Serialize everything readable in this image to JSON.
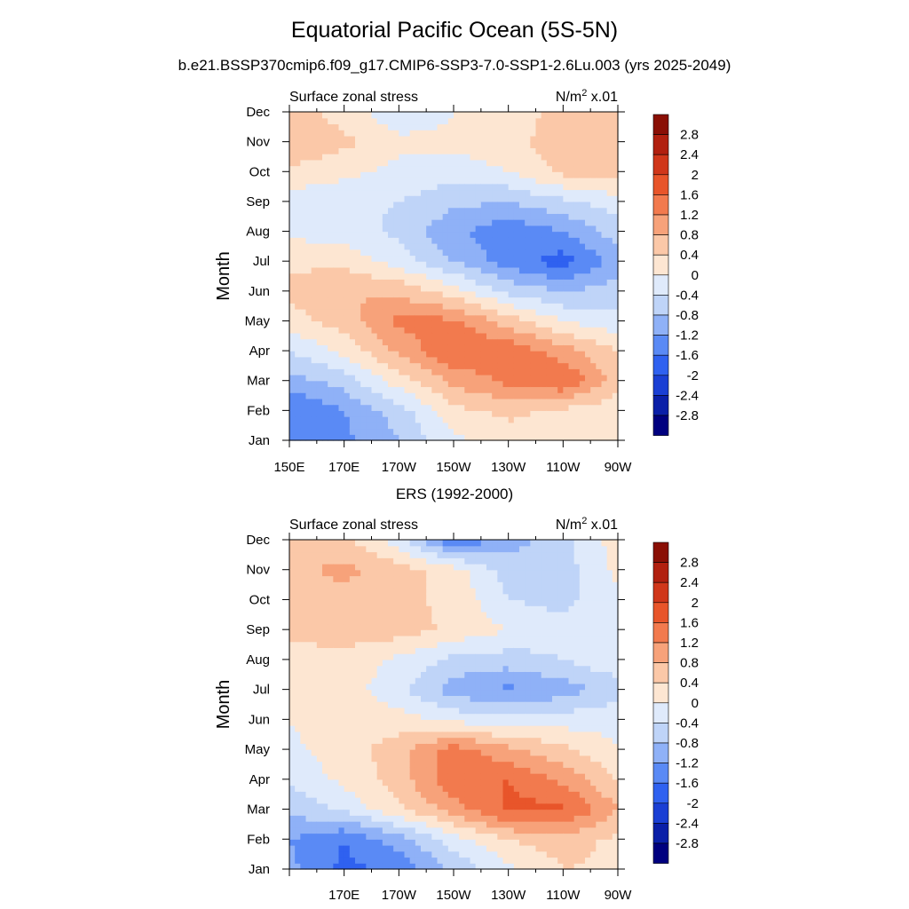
{
  "header": {
    "title": "Equatorial Pacific Ocean (5S-5N)",
    "subtitle": "b.e21.BSSP370cmip6.f09_g17.CMIP6-SSP3-7.0-SSP1-2.6Lu.003 (yrs 2025-2049)"
  },
  "colors": {
    "scale": [
      "#00007f",
      "#0a1fa8",
      "#1a3fd4",
      "#2f61f0",
      "#5a8af5",
      "#8fb1f7",
      "#bfd4f8",
      "#dfeafb",
      "#fde6d2",
      "#fbc8a8",
      "#f7a27a",
      "#f27a4e",
      "#e8552a",
      "#d0371a",
      "#b1200f",
      "#8a0f05"
    ]
  },
  "chart_data": [
    {
      "type": "heatmap",
      "panel_title": "",
      "left_label": "Surface zonal stress",
      "right_label_base": "N/m",
      "right_label_sup": "2",
      "right_label_suffix": " x.01",
      "ylabel": "Month",
      "y_ticks": [
        "Jan",
        "Feb",
        "Mar",
        "Apr",
        "May",
        "Jun",
        "Jul",
        "Aug",
        "Sep",
        "Oct",
        "Nov",
        "Dec"
      ],
      "x_ticks": [
        "150E",
        "170E",
        "170W",
        "150W",
        "130W",
        "110W",
        "90W"
      ],
      "x_range": [
        150,
        270
      ],
      "y_range": [
        1,
        12
      ],
      "colorbar_levels": [
        "2.8",
        "2.4",
        "2",
        "1.6",
        "1.2",
        "0.8",
        "0.4",
        "0",
        "-0.4",
        "-0.8",
        "-1.2",
        "-1.6",
        "-2",
        "-2.4",
        "-2.8"
      ],
      "values_note_units": "N/m2 x.01",
      "x": [
        150,
        170,
        190,
        210,
        230,
        250,
        270
      ],
      "z": [
        [
          -1.4,
          -1.3,
          -0.8,
          -0.1,
          0.2,
          0.1,
          0.0
        ],
        [
          -1.6,
          -1.2,
          -0.6,
          0.3,
          0.5,
          0.3,
          0.1
        ],
        [
          -1.0,
          -0.6,
          0.2,
          0.9,
          1.3,
          1.6,
          0.6
        ],
        [
          -0.4,
          0.1,
          0.9,
          1.6,
          1.5,
          1.0,
          0.4
        ],
        [
          0.2,
          0.6,
          1.3,
          1.3,
          0.6,
          0.0,
          -0.3
        ],
        [
          0.5,
          0.8,
          0.7,
          0.2,
          -0.5,
          -0.8,
          -0.6
        ],
        [
          0.3,
          0.3,
          -0.2,
          -0.8,
          -1.4,
          -1.8,
          -1.0
        ],
        [
          -0.1,
          -0.2,
          -0.5,
          -1.1,
          -1.5,
          -1.2,
          -0.6
        ],
        [
          -0.2,
          -0.3,
          -0.4,
          -0.7,
          -0.8,
          -0.5,
          -0.2
        ],
        [
          0.3,
          0.1,
          -0.1,
          -0.2,
          0.0,
          0.5,
          0.6
        ],
        [
          0.8,
          0.5,
          0.1,
          0.1,
          0.2,
          0.7,
          0.8
        ],
        [
          0.6,
          0.2,
          -0.3,
          0.0,
          0.1,
          0.6,
          0.7
        ]
      ]
    },
    {
      "type": "heatmap",
      "panel_title": "ERS (1992-2000)",
      "left_label": "Surface zonal stress",
      "right_label_base": "N/m",
      "right_label_sup": "2",
      "right_label_suffix": " x.01",
      "ylabel": "Month",
      "y_ticks": [
        "Jan",
        "Feb",
        "Mar",
        "Apr",
        "May",
        "Jun",
        "Jul",
        "Aug",
        "Sep",
        "Oct",
        "Nov",
        "Dec"
      ],
      "x_ticks": [
        "",
        "170E",
        "170W",
        "150W",
        "130W",
        "110W",
        "90W"
      ],
      "x_range": [
        150,
        270
      ],
      "y_range": [
        1,
        12
      ],
      "colorbar_levels": [
        "2.8",
        "2.4",
        "2",
        "1.6",
        "1.2",
        "0.8",
        "0.4",
        "0",
        "-0.4",
        "-0.8",
        "-1.2",
        "-1.6",
        "-2",
        "-2.4",
        "-2.8"
      ],
      "values_note_units": "N/m2 x.01",
      "x": [
        150,
        170,
        190,
        210,
        230,
        250,
        270
      ],
      "z": [
        [
          -1.1,
          -1.7,
          -1.5,
          -0.7,
          -0.1,
          0.4,
          0.3
        ],
        [
          -1.2,
          -1.6,
          -1.0,
          -0.2,
          0.4,
          0.6,
          0.3
        ],
        [
          -0.7,
          -0.3,
          0.3,
          1.0,
          1.7,
          1.7,
          0.8
        ],
        [
          -0.3,
          0.1,
          0.6,
          1.5,
          1.6,
          1.1,
          0.4
        ],
        [
          -0.1,
          0.2,
          0.6,
          1.4,
          0.9,
          0.5,
          0.0
        ],
        [
          0.0,
          0.3,
          0.2,
          -0.1,
          -0.3,
          -0.2,
          -0.1
        ],
        [
          0.0,
          0.2,
          -0.3,
          -1.0,
          -1.3,
          -1.0,
          -0.6
        ],
        [
          0.2,
          0.3,
          -0.1,
          -0.5,
          -0.6,
          -0.4,
          -0.1
        ],
        [
          0.5,
          0.6,
          0.6,
          0.3,
          0.0,
          -0.3,
          -0.1
        ],
        [
          0.6,
          0.7,
          0.5,
          0.3,
          -0.4,
          -0.5,
          -0.1
        ],
        [
          0.7,
          0.9,
          0.6,
          0.2,
          -0.6,
          -0.6,
          0.1
        ],
        [
          0.6,
          0.5,
          -0.2,
          -1.6,
          -1.0,
          -0.5,
          0.2
        ]
      ]
    }
  ]
}
